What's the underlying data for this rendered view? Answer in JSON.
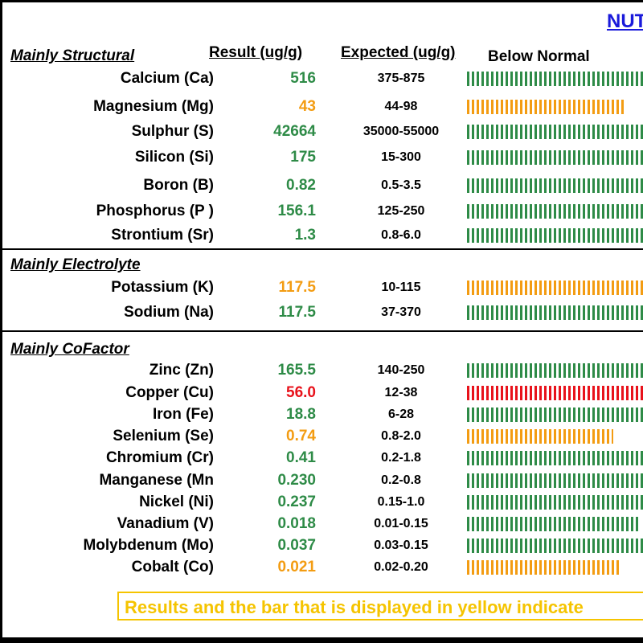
{
  "title": "NUT",
  "headers": {
    "result": "Result (ug/g)",
    "expected": "Expected (ug/g)",
    "below_normal": "Below Normal"
  },
  "colors": {
    "green": "#2e8b47",
    "orange": "#f39c12",
    "red": "#e8121b"
  },
  "sections": [
    {
      "label": "Mainly Structural",
      "rows": [
        {
          "name": "Calcium (Ca)",
          "result": "516",
          "expected": "375-875",
          "status": "green",
          "bar_fill": 1.0
        },
        {
          "name": "Magnesium (Mg)",
          "result": "43",
          "expected": "44-98",
          "status": "orange",
          "bar_fill": 0.89
        },
        {
          "name": "Sulphur (S)",
          "result": "42664",
          "expected": "35000-55000",
          "status": "green",
          "bar_fill": 1.0
        },
        {
          "name": "Silicon (Si)",
          "result": "175",
          "expected": "15-300",
          "status": "green",
          "bar_fill": 1.0
        },
        {
          "name": "Boron (B)",
          "result": "0.82",
          "expected": "0.5-3.5",
          "status": "green",
          "bar_fill": 1.0
        },
        {
          "name": "Phosphorus (P )",
          "result": "156.1",
          "expected": "125-250",
          "status": "green",
          "bar_fill": 1.0
        },
        {
          "name": "Strontium (Sr)",
          "result": "1.3",
          "expected": "0.8-6.0",
          "status": "green",
          "bar_fill": 1.0
        }
      ]
    },
    {
      "label": "Mainly Electrolyte",
      "rows": [
        {
          "name": "Potassium (K)",
          "result": "117.5",
          "expected": "10-115",
          "status": "orange",
          "bar_fill": 1.0
        },
        {
          "name": "Sodium (Na)",
          "result": "117.5",
          "expected": "37-370",
          "status": "green",
          "bar_fill": 1.0
        }
      ]
    },
    {
      "label": "Mainly CoFactor",
      "rows": [
        {
          "name": "Zinc (Zn)",
          "result": "165.5",
          "expected": "140-250",
          "status": "green",
          "bar_fill": 1.0
        },
        {
          "name": "Copper (Cu)",
          "result": "56.0",
          "expected": "12-38",
          "status": "red",
          "bar_fill": 1.0
        },
        {
          "name": "Iron (Fe)",
          "result": "18.8",
          "expected": "6-28",
          "status": "green",
          "bar_fill": 1.0
        },
        {
          "name": "Selenium (Se)",
          "result": "0.74",
          "expected": "0.8-2.0",
          "status": "orange",
          "bar_fill": 0.82
        },
        {
          "name": "Chromium (Cr)",
          "result": "0.41",
          "expected": "0.2-1.8",
          "status": "green",
          "bar_fill": 1.0
        },
        {
          "name": "Manganese (Mn",
          "result": "0.230",
          "expected": "0.2-0.8",
          "status": "green",
          "bar_fill": 1.0
        },
        {
          "name": "Nickel (Ni)",
          "result": "0.237",
          "expected": "0.15-1.0",
          "status": "green",
          "bar_fill": 1.0
        },
        {
          "name": "Vanadium (V)",
          "result": "0.018",
          "expected": "0.01-0.15",
          "status": "green",
          "bar_fill": 0.96
        },
        {
          "name": "Molybdenum (Mo)",
          "result": "0.037",
          "expected": "0.03-0.15",
          "status": "green",
          "bar_fill": 1.0
        },
        {
          "name": "Cobalt (Co)",
          "result": "0.021",
          "expected": "0.02-0.20",
          "status": "orange",
          "bar_fill": 0.86
        }
      ]
    }
  ],
  "footer_note": "Results and the bar that is displayed in yellow indicate"
}
